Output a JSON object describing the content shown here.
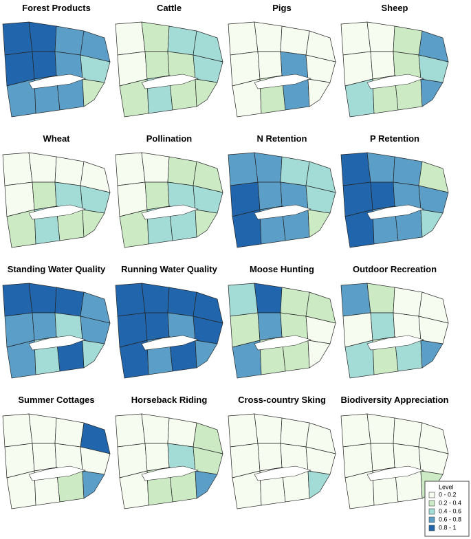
{
  "maps": [
    {
      "title": "Forest Products",
      "levels": [
        4,
        4,
        3,
        3,
        4,
        4,
        3,
        2,
        3,
        3,
        3,
        1
      ]
    },
    {
      "title": "Cattle",
      "levels": [
        0,
        1,
        2,
        2,
        0,
        1,
        1,
        2,
        1,
        2,
        1,
        1
      ]
    },
    {
      "title": "Pigs",
      "levels": [
        0,
        0,
        0,
        0,
        0,
        0,
        3,
        0,
        0,
        1,
        3,
        0
      ]
    },
    {
      "title": "Sheep",
      "levels": [
        0,
        0,
        1,
        3,
        0,
        0,
        1,
        2,
        2,
        1,
        1,
        3
      ]
    },
    {
      "title": "Wheat",
      "levels": [
        0,
        0,
        0,
        0,
        0,
        1,
        2,
        2,
        1,
        2,
        1,
        1
      ]
    },
    {
      "title": "Pollination",
      "levels": [
        0,
        0,
        1,
        1,
        0,
        1,
        2,
        2,
        1,
        2,
        2,
        1
      ]
    },
    {
      "title": "N Retention",
      "levels": [
        3,
        3,
        2,
        2,
        4,
        3,
        3,
        2,
        4,
        3,
        3,
        1
      ]
    },
    {
      "title": "P Retention",
      "levels": [
        4,
        3,
        3,
        1,
        4,
        4,
        3,
        3,
        4,
        3,
        3,
        2
      ]
    },
    {
      "title": "Standing Water Quality",
      "levels": [
        4,
        4,
        4,
        3,
        3,
        3,
        2,
        3,
        3,
        2,
        4,
        2
      ]
    },
    {
      "title": "Running Water Quality",
      "levels": [
        4,
        4,
        4,
        4,
        4,
        4,
        3,
        4,
        4,
        3,
        4,
        3
      ]
    },
    {
      "title": "Moose Hunting",
      "levels": [
        2,
        4,
        1,
        1,
        1,
        3,
        1,
        0,
        3,
        1,
        1,
        0
      ]
    },
    {
      "title": "Outdoor Recreation",
      "levels": [
        3,
        1,
        0,
        0,
        0,
        2,
        0,
        0,
        2,
        1,
        2,
        3
      ]
    },
    {
      "title": "Summer Cottages",
      "levels": [
        0,
        0,
        0,
        4,
        0,
        0,
        0,
        0,
        0,
        0,
        1,
        3
      ]
    },
    {
      "title": "Horseback Riding",
      "levels": [
        0,
        0,
        0,
        1,
        0,
        0,
        2,
        1,
        0,
        1,
        1,
        3
      ]
    },
    {
      "title": "Cross-country Sking",
      "levels": [
        0,
        0,
        0,
        0,
        0,
        0,
        0,
        0,
        0,
        0,
        0,
        2
      ]
    },
    {
      "title": "Biodiversity Appreciation",
      "levels": [
        0,
        0,
        0,
        0,
        0,
        0,
        0,
        0,
        0,
        0,
        0,
        1
      ]
    }
  ],
  "legend": {
    "title": "Level",
    "classes": [
      {
        "label": "0 - 0.2",
        "color": "#f7fcf0"
      },
      {
        "label": "0.2 - 0.4",
        "color": "#ccebc5"
      },
      {
        "label": "0.4 - 0.6",
        "color": "#a3dbd6"
      },
      {
        "label": "0.6 - 0.8",
        "color": "#5b9fc8"
      },
      {
        "label": "0.8 - 1",
        "color": "#2166ac"
      }
    ]
  }
}
